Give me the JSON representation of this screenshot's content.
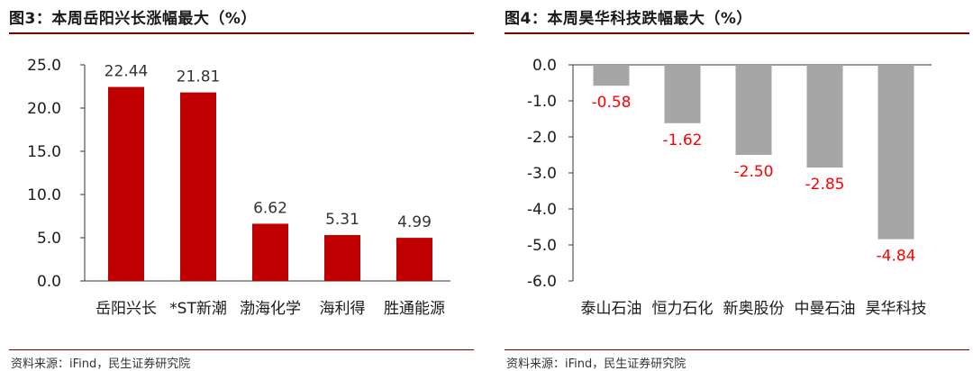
{
  "charts": [
    {
      "title": "图3：本周岳阳兴长涨幅最大（%）",
      "source": "资料来源：iFind，民生证券研究院",
      "chart_data": {
        "type": "bar",
        "categories": [
          "岳阳兴长",
          "*ST新潮",
          "渤海化学",
          "海利得",
          "胜通能源"
        ],
        "values": [
          22.44,
          21.81,
          6.62,
          5.31,
          4.99
        ],
        "value_labels": [
          "22.44",
          "21.81",
          "6.62",
          "5.31",
          "4.99"
        ],
        "yticks": [
          "25.0",
          "20.0",
          "15.0",
          "10.0",
          "5.0",
          "0.0"
        ],
        "ylim": [
          0,
          25
        ],
        "bar_color": "#c00000",
        "label_color": "#333333"
      }
    },
    {
      "title": "图4：本周昊华科技跌幅最大（%）",
      "source": "资料来源：iFind，民生证券研究院",
      "chart_data": {
        "type": "bar",
        "categories": [
          "泰山石油",
          "恒力石化",
          "新奥股份",
          "中曼石油",
          "昊华科技"
        ],
        "values": [
          -0.58,
          -1.62,
          -2.5,
          -2.85,
          -4.84
        ],
        "value_labels": [
          "-0.58",
          "-1.62",
          "-2.50",
          "-2.85",
          "-4.84"
        ],
        "yticks": [
          "0.0",
          "-1.0",
          "-2.0",
          "-3.0",
          "-4.0",
          "-5.0",
          "-6.0"
        ],
        "ylim": [
          -6,
          0
        ],
        "bar_color": "#a6a6a6",
        "label_color": "#ff0000"
      }
    }
  ]
}
